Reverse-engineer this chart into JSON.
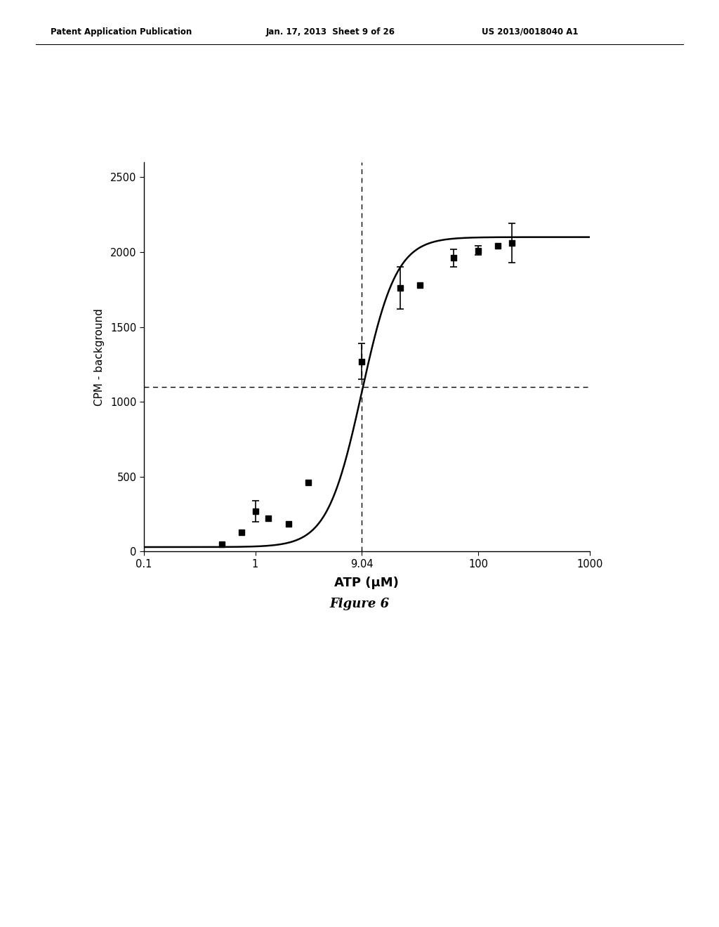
{
  "header_left": "Patent Application Publication",
  "header_mid": "Jan. 17, 2013  Sheet 9 of 26",
  "header_right": "US 2013/0018040 A1",
  "figure_label": "Figure 6",
  "xlabel": "ATP (μM)",
  "ylabel": "CPM - background",
  "data_x": [
    0.5,
    0.75,
    1.0,
    1.3,
    2.0,
    3.0,
    9.04,
    20,
    30,
    60,
    100,
    150,
    200
  ],
  "data_y": [
    50,
    130,
    270,
    220,
    185,
    460,
    1270,
    1760,
    1780,
    1960,
    2010,
    2040,
    2060
  ],
  "data_yerr": [
    0,
    0,
    70,
    0,
    0,
    0,
    120,
    140,
    0,
    60,
    30,
    0,
    130
  ],
  "hline_y": 1100,
  "vline_x": 9.04,
  "xlim": [
    0.1,
    1000
  ],
  "ylim": [
    0,
    2600
  ],
  "yticks": [
    0,
    500,
    1000,
    1500,
    2000,
    2500
  ],
  "xtick_labels": [
    "0.1",
    "1",
    "9.04",
    "100",
    "1000"
  ],
  "xtick_values": [
    0.1,
    1,
    9.04,
    100,
    1000
  ],
  "curve_color": "#000000",
  "data_color": "#000000",
  "background_color": "#ffffff",
  "hill_Vmax": 2100,
  "hill_K": 9.04,
  "hill_n": 2.8,
  "hill_baseline": 30
}
